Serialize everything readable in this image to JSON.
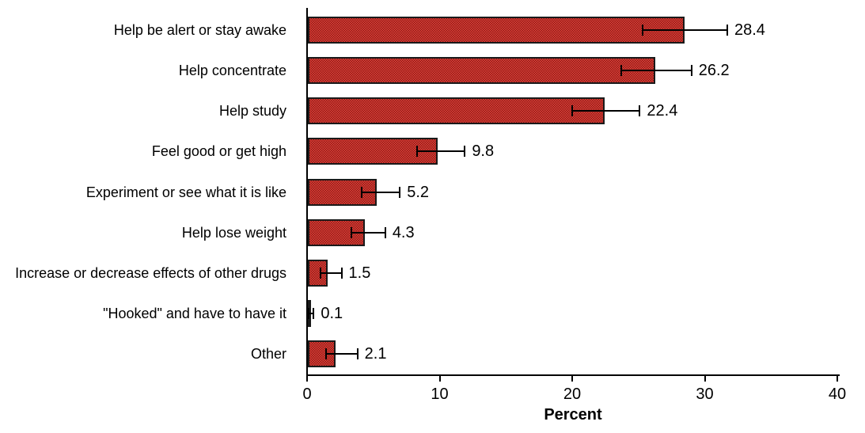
{
  "chart_data": {
    "type": "bar",
    "orientation": "horizontal",
    "title": "",
    "xlabel": "Percent",
    "ylabel": "",
    "xlim": [
      0,
      40
    ],
    "x_ticks": [
      0,
      10,
      20,
      30,
      40
    ],
    "grid": false,
    "legend": "none",
    "categories": [
      "Help be alert or stay awake",
      "Help concentrate",
      "Help study",
      "Feel good or get high",
      "Experiment or see what it is like",
      "Help lose weight",
      "Increase or decrease effects of other drugs",
      "\"Hooked\" and have to have it",
      "Other"
    ],
    "values": [
      28.4,
      26.2,
      22.4,
      9.8,
      5.2,
      4.3,
      1.5,
      0.1,
      2.1
    ],
    "error_low": [
      25.2,
      23.6,
      19.9,
      8.2,
      4.0,
      3.2,
      0.9,
      0.0,
      1.3
    ],
    "error_high": [
      31.7,
      29.0,
      25.1,
      11.9,
      7.0,
      5.9,
      2.6,
      0.5,
      3.8
    ],
    "colors": {
      "bar_fill_light": "#e2423a",
      "bar_fill_dark": "#8c1a16",
      "bar_border": "#1a1a1a",
      "error_bar": "#000000",
      "axis": "#000000",
      "text": "#000000",
      "background": "#ffffff"
    }
  }
}
